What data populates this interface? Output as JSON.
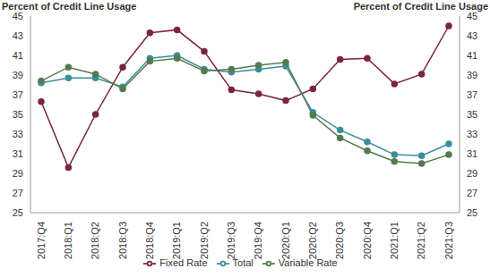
{
  "chart_data": {
    "type": "line",
    "y_label": "Percent of Credit Line Usage",
    "y2_label": "Percent of Credit Line Usage",
    "categories": [
      "2017:Q4",
      "2018:Q1",
      "2018:Q2",
      "2018:Q3",
      "2018:Q4",
      "2019:Q1",
      "2019:Q2",
      "2019:Q3",
      "2019:Q4",
      "2020:Q1",
      "2020:Q2",
      "2020:Q3",
      "2020:Q4",
      "2021:Q1",
      "2021:Q2",
      "2021:Q3"
    ],
    "series": [
      {
        "name": "Total",
        "color": "#3b8e9c",
        "values": [
          38.2,
          38.7,
          38.7,
          37.8,
          40.7,
          41.0,
          39.6,
          39.3,
          39.6,
          39.9,
          35.2,
          33.4,
          32.2,
          30.9,
          30.8,
          32.0
        ]
      },
      {
        "name": "Fixed Rate",
        "color": "#7a2444",
        "values": [
          36.3,
          29.6,
          35.0,
          39.8,
          43.3,
          43.6,
          41.4,
          37.5,
          37.1,
          36.4,
          37.6,
          40.6,
          40.7,
          38.1,
          39.1,
          44.0
        ]
      },
      {
        "name": "Variable Rate",
        "color": "#557a4c",
        "values": [
          38.4,
          39.8,
          39.1,
          37.6,
          40.4,
          40.7,
          39.4,
          39.6,
          40.0,
          40.3,
          34.9,
          32.6,
          31.3,
          30.2,
          30.0,
          30.9
        ]
      }
    ],
    "ylim": [
      25,
      45
    ],
    "yticks": [
      25,
      27,
      29,
      31,
      33,
      35,
      37,
      39,
      41,
      43,
      45
    ],
    "y2lim": [
      25,
      45
    ],
    "y2ticks": [
      25,
      27,
      29,
      31,
      33,
      35,
      37,
      39,
      41,
      43,
      45
    ],
    "grid": false,
    "marker": "circle",
    "legend": "bottom"
  }
}
